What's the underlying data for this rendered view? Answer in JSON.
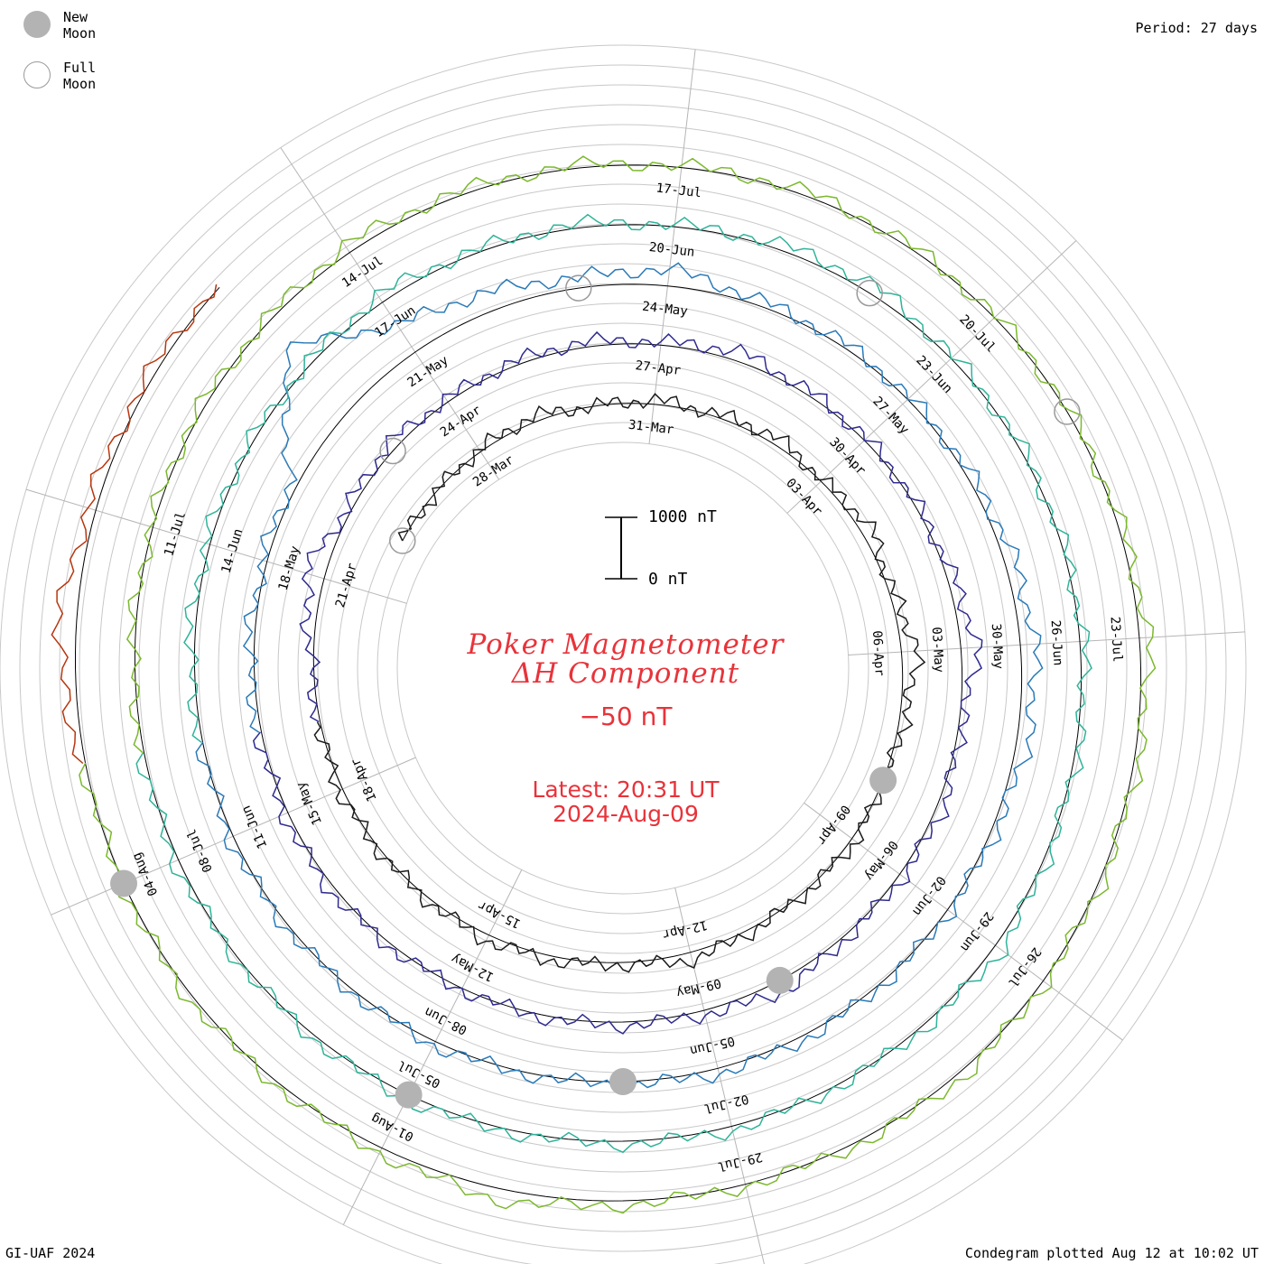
{
  "legend": {
    "new_moon_label": "New Moon",
    "full_moon_label": "Full Moon"
  },
  "period_label": "Period: 27 days",
  "footer": {
    "left": "GI-UAF 2024",
    "right": "Condegram plotted Aug 12 at 10:02 UT"
  },
  "title": {
    "line1": "Poker Magnetometer",
    "line2": "ΔH Component",
    "offset": "−50 nT"
  },
  "latest": {
    "time": "Latest: 20:31 UT",
    "date": "2024-Aug-09"
  },
  "scale_bar": {
    "top_label": "1000 nT",
    "bottom_label": "0 nT"
  },
  "colors": {
    "text_accent": "#e8333a",
    "grid": "#c8c8c8",
    "baseline": "#000000",
    "new_moon": "#b3b3b3",
    "full_moon_outline": "#999999"
  },
  "chart_data": {
    "type": "line",
    "projection": "spiral condegram (polar, 27-day period per turn)",
    "period_days": 27,
    "start_date": "2024-03-26",
    "end_date": "2024-08-09",
    "units": "nT",
    "date_labels": [
      "28-Mar",
      "31-Mar",
      "03-Apr",
      "06-Apr",
      "09-Apr",
      "12-Apr",
      "15-Apr",
      "18-Apr",
      "21-Apr",
      "24-Apr",
      "27-Apr",
      "30-Apr",
      "03-May",
      "06-May",
      "09-May",
      "12-May",
      "15-May",
      "18-May",
      "21-May",
      "24-May",
      "27-May",
      "30-May",
      "02-Jun",
      "05-Jun",
      "08-Jun",
      "11-Jun",
      "14-Jun",
      "17-Jun",
      "20-Jun",
      "23-Jun",
      "26-Jun",
      "29-Jun",
      "02-Jul",
      "05-Jul",
      "08-Jul",
      "11-Jul",
      "14-Jul",
      "17-Jul",
      "20-Jul",
      "23-Jul",
      "26-Jul",
      "29-Jul",
      "01-Aug",
      "04-Aug"
    ],
    "new_moons": [
      "2024-04-08",
      "2024-05-08",
      "2024-06-06",
      "2024-07-05",
      "2024-08-04"
    ],
    "full_moons": [
      "2024-03-25",
      "2024-04-23",
      "2024-05-23",
      "2024-06-22",
      "2024-07-21"
    ],
    "series": [
      {
        "name": "",
        "color": "#1a1a1a",
        "start": "2024-03-26",
        "end": "2024-04-19",
        "approx_dH_nT": [
          0,
          10,
          -30,
          -90,
          10,
          -60,
          -40,
          -110,
          -20,
          -160,
          -40,
          -250,
          -80,
          -30,
          -60,
          -20,
          -40,
          -120,
          -30,
          -60,
          -90,
          -40,
          -20,
          -60,
          -30
        ]
      },
      {
        "name": "",
        "color": "#2e2a8f",
        "start": "2024-04-19",
        "end": "2024-05-16",
        "approx_dH_nT": [
          -20,
          -40,
          -300,
          -60,
          -120,
          -40,
          -60,
          -80,
          -40,
          -150,
          -60,
          -40,
          -20,
          -80,
          -260,
          -30,
          -100,
          -60,
          -40,
          -180,
          -60,
          -50,
          -30,
          -20,
          -40,
          -80,
          -60,
          -40
        ]
      },
      {
        "name": "",
        "color": "#2a7ab8",
        "start": "2024-05-16",
        "end": "2024-06-12",
        "approx_dH_nT": [
          -40,
          -80,
          -60,
          -120,
          -1400,
          -500,
          -300,
          -160,
          -260,
          -80,
          -60,
          -40,
          -60,
          -150,
          -240,
          -180,
          -60,
          -40,
          -30,
          -60,
          -80,
          -40,
          -20,
          -60,
          -30,
          -40,
          -60,
          -20
        ]
      },
      {
        "name": "",
        "color": "#2fb39a",
        "start": "2024-06-12",
        "end": "2024-07-09",
        "approx_dH_nT": [
          -20,
          -80,
          -60,
          -40,
          -30,
          -120,
          -40,
          -60,
          -20,
          -80,
          -140,
          -40,
          -30,
          -20,
          -60,
          -40,
          -30,
          -120,
          -40,
          -20,
          -60,
          -40,
          -30,
          -80,
          -40,
          -20,
          -60,
          -40
        ]
      },
      {
        "name": "",
        "color": "#7cb82e",
        "start": "2024-07-09",
        "end": "2024-08-05",
        "approx_dH_nT": [
          -20,
          -40,
          -30,
          -60,
          -40,
          -120,
          -60,
          -40,
          -20,
          -60,
          -40,
          -30,
          -20,
          -40,
          -140,
          -60,
          -40,
          -30,
          -80,
          -40,
          -20,
          -60,
          -180,
          -80,
          -40,
          -60,
          -30,
          -20
        ]
      },
      {
        "name": "",
        "color": "#b8360e",
        "start": "2024-08-05",
        "end": "2024-08-09",
        "approx_dH_nT": [
          -40,
          -300,
          -120,
          -80,
          -60
        ]
      }
    ]
  }
}
